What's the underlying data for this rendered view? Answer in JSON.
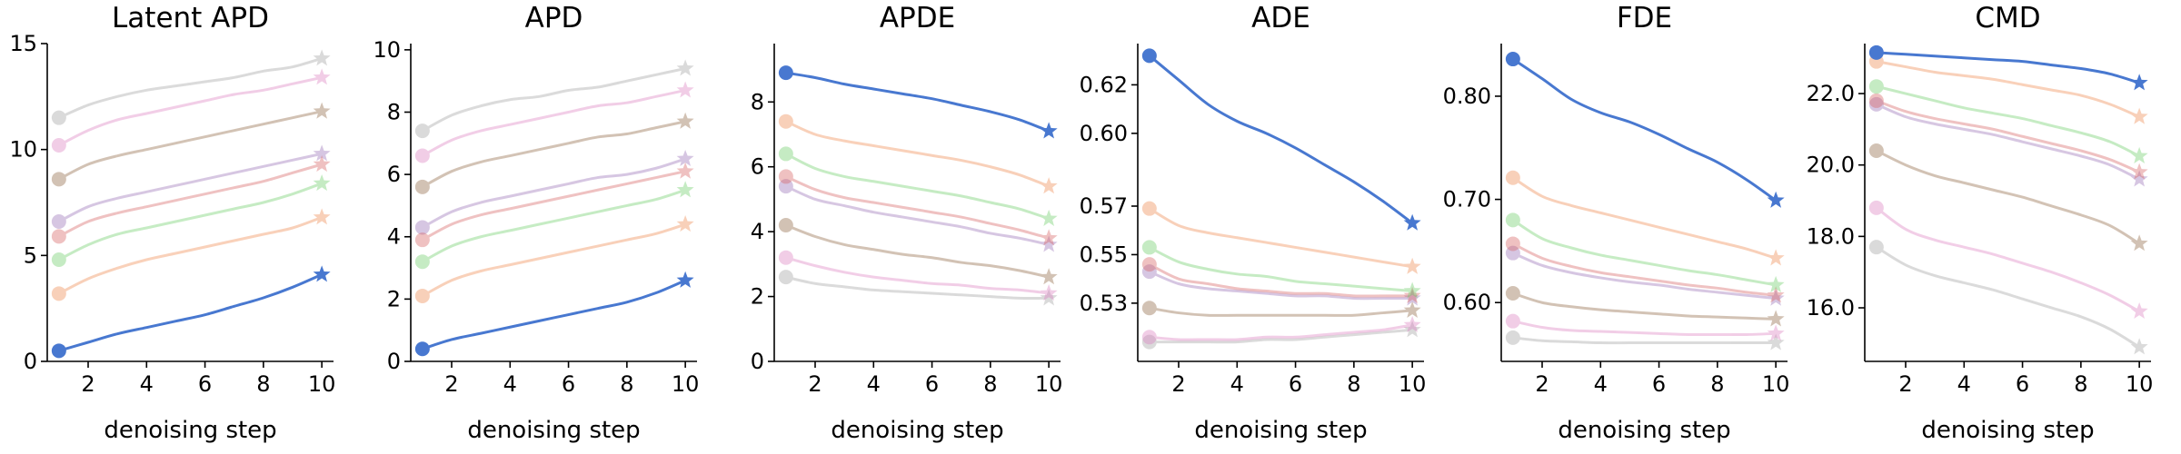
{
  "chart_data": [
    {
      "type": "line",
      "title": "Latent APD",
      "xlabel": "denoising step",
      "xlim": [
        0.6,
        10.4
      ],
      "ylim": [
        0,
        15
      ],
      "xticks": [
        2,
        4,
        6,
        8,
        10
      ],
      "xtick_labels": [
        "2",
        "4",
        "6",
        "8",
        "10"
      ],
      "yticks": [
        0,
        5,
        10,
        15
      ],
      "ytick_labels": [
        "0",
        "5",
        "10",
        "15"
      ],
      "grid": false,
      "x": [
        1,
        2,
        3,
        4,
        5,
        6,
        7,
        8,
        9,
        10
      ],
      "series": [
        {
          "color": "#4878d0",
          "values": [
            0.5,
            0.9,
            1.3,
            1.6,
            1.9,
            2.2,
            2.6,
            3.0,
            3.5,
            4.1
          ]
        },
        {
          "color": "#ee854a",
          "values": [
            3.2,
            3.9,
            4.4,
            4.8,
            5.1,
            5.4,
            5.7,
            6.0,
            6.3,
            6.8
          ]
        },
        {
          "color": "#6acc64",
          "values": [
            4.8,
            5.5,
            6.0,
            6.3,
            6.6,
            6.9,
            7.2,
            7.5,
            7.9,
            8.4
          ]
        },
        {
          "color": "#d65f5f",
          "values": [
            5.9,
            6.6,
            7.0,
            7.3,
            7.6,
            7.9,
            8.2,
            8.5,
            8.9,
            9.3
          ]
        },
        {
          "color": "#956cb4",
          "values": [
            6.6,
            7.3,
            7.7,
            8.0,
            8.3,
            8.6,
            8.9,
            9.2,
            9.5,
            9.8
          ]
        },
        {
          "color": "#8c613c",
          "values": [
            8.6,
            9.3,
            9.7,
            10.0,
            10.3,
            10.6,
            10.9,
            11.2,
            11.5,
            11.8
          ]
        },
        {
          "color": "#dc7ec0",
          "values": [
            10.2,
            10.9,
            11.4,
            11.7,
            12.0,
            12.3,
            12.6,
            12.8,
            13.1,
            13.4
          ]
        },
        {
          "color": "#a0a0a0",
          "values": [
            11.5,
            12.1,
            12.5,
            12.8,
            13.0,
            13.2,
            13.4,
            13.7,
            13.9,
            14.3
          ]
        }
      ]
    },
    {
      "type": "line",
      "title": "APD",
      "xlabel": "denoising step",
      "xlim": [
        0.6,
        10.4
      ],
      "ylim": [
        0,
        10.2
      ],
      "xticks": [
        2,
        4,
        6,
        8,
        10
      ],
      "xtick_labels": [
        "2",
        "4",
        "6",
        "8",
        "10"
      ],
      "yticks": [
        0,
        2,
        4,
        6,
        8,
        10
      ],
      "ytick_labels": [
        "0",
        "2",
        "4",
        "6",
        "8",
        "10"
      ],
      "grid": false,
      "x": [
        1,
        2,
        3,
        4,
        5,
        6,
        7,
        8,
        9,
        10
      ],
      "series": [
        {
          "color": "#4878d0",
          "values": [
            0.4,
            0.7,
            0.9,
            1.1,
            1.3,
            1.5,
            1.7,
            1.9,
            2.2,
            2.6
          ]
        },
        {
          "color": "#ee854a",
          "values": [
            2.1,
            2.6,
            2.9,
            3.1,
            3.3,
            3.5,
            3.7,
            3.9,
            4.1,
            4.4
          ]
        },
        {
          "color": "#6acc64",
          "values": [
            3.2,
            3.7,
            4.0,
            4.2,
            4.4,
            4.6,
            4.8,
            5.0,
            5.2,
            5.5
          ]
        },
        {
          "color": "#d65f5f",
          "values": [
            3.9,
            4.4,
            4.7,
            4.9,
            5.1,
            5.3,
            5.5,
            5.7,
            5.9,
            6.1
          ]
        },
        {
          "color": "#956cb4",
          "values": [
            4.3,
            4.8,
            5.1,
            5.3,
            5.5,
            5.7,
            5.9,
            6.0,
            6.2,
            6.5
          ]
        },
        {
          "color": "#8c613c",
          "values": [
            5.6,
            6.1,
            6.4,
            6.6,
            6.8,
            7.0,
            7.2,
            7.3,
            7.5,
            7.7
          ]
        },
        {
          "color": "#dc7ec0",
          "values": [
            6.6,
            7.1,
            7.4,
            7.6,
            7.8,
            8.0,
            8.2,
            8.3,
            8.5,
            8.7
          ]
        },
        {
          "color": "#a0a0a0",
          "values": [
            7.4,
            7.9,
            8.2,
            8.4,
            8.5,
            8.7,
            8.8,
            9.0,
            9.2,
            9.4
          ]
        }
      ]
    },
    {
      "type": "line",
      "title": "APDE",
      "xlabel": "denoising step",
      "xlim": [
        0.6,
        10.4
      ],
      "ylim": [
        0,
        9.8
      ],
      "xticks": [
        2,
        4,
        6,
        8,
        10
      ],
      "xtick_labels": [
        "2",
        "4",
        "6",
        "8",
        "10"
      ],
      "yticks": [
        0,
        2,
        4,
        6,
        8
      ],
      "ytick_labels": [
        "0",
        "2",
        "4",
        "6",
        "8"
      ],
      "grid": false,
      "x": [
        1,
        2,
        3,
        4,
        5,
        6,
        7,
        8,
        9,
        10
      ],
      "series": [
        {
          "color": "#4878d0",
          "values": [
            8.9,
            8.75,
            8.55,
            8.4,
            8.25,
            8.1,
            7.9,
            7.7,
            7.45,
            7.1
          ]
        },
        {
          "color": "#ee854a",
          "values": [
            7.4,
            7.0,
            6.8,
            6.65,
            6.5,
            6.35,
            6.2,
            6.0,
            5.75,
            5.4
          ]
        },
        {
          "color": "#6acc64",
          "values": [
            6.4,
            5.95,
            5.7,
            5.55,
            5.4,
            5.25,
            5.1,
            4.9,
            4.7,
            4.4
          ]
        },
        {
          "color": "#d65f5f",
          "values": [
            5.7,
            5.3,
            5.05,
            4.9,
            4.75,
            4.6,
            4.45,
            4.25,
            4.05,
            3.8
          ]
        },
        {
          "color": "#956cb4",
          "values": [
            5.4,
            5.0,
            4.8,
            4.6,
            4.45,
            4.3,
            4.15,
            3.95,
            3.8,
            3.6
          ]
        },
        {
          "color": "#8c613c",
          "values": [
            4.2,
            3.85,
            3.6,
            3.45,
            3.3,
            3.2,
            3.05,
            2.95,
            2.8,
            2.6
          ]
        },
        {
          "color": "#dc7ec0",
          "values": [
            3.2,
            2.95,
            2.75,
            2.6,
            2.5,
            2.4,
            2.35,
            2.25,
            2.2,
            2.1
          ]
        },
        {
          "color": "#a0a0a0",
          "values": [
            2.6,
            2.4,
            2.3,
            2.2,
            2.15,
            2.1,
            2.05,
            2.0,
            1.95,
            1.95
          ]
        }
      ]
    },
    {
      "type": "line",
      "title": "ADE",
      "xlabel": "denoising step",
      "xlim": [
        0.6,
        10.4
      ],
      "ylim": [
        0.506,
        0.637
      ],
      "xticks": [
        2,
        4,
        6,
        8,
        10
      ],
      "xtick_labels": [
        "2",
        "4",
        "6",
        "8",
        "10"
      ],
      "yticks": [
        0.53,
        0.55,
        0.57,
        0.6,
        0.62
      ],
      "ytick_labels": [
        "0.53",
        "0.55",
        "0.57",
        "0.60",
        "0.62"
      ],
      "grid": false,
      "x": [
        1,
        2,
        3,
        4,
        5,
        6,
        7,
        8,
        9,
        10
      ],
      "series": [
        {
          "color": "#4878d0",
          "values": [
            0.632,
            0.622,
            0.612,
            0.605,
            0.6,
            0.594,
            0.587,
            0.58,
            0.572,
            0.563
          ]
        },
        {
          "color": "#ee854a",
          "values": [
            0.569,
            0.562,
            0.559,
            0.557,
            0.555,
            0.553,
            0.551,
            0.549,
            0.547,
            0.545
          ]
        },
        {
          "color": "#6acc64",
          "values": [
            0.553,
            0.547,
            0.544,
            0.542,
            0.541,
            0.539,
            0.538,
            0.537,
            0.536,
            0.535
          ]
        },
        {
          "color": "#d65f5f",
          "values": [
            0.546,
            0.54,
            0.538,
            0.536,
            0.535,
            0.534,
            0.534,
            0.533,
            0.533,
            0.533
          ]
        },
        {
          "color": "#956cb4",
          "values": [
            0.543,
            0.538,
            0.536,
            0.535,
            0.534,
            0.533,
            0.533,
            0.532,
            0.532,
            0.532
          ]
        },
        {
          "color": "#8c613c",
          "values": [
            0.528,
            0.526,
            0.525,
            0.525,
            0.525,
            0.525,
            0.525,
            0.525,
            0.526,
            0.527
          ]
        },
        {
          "color": "#dc7ec0",
          "values": [
            0.516,
            0.515,
            0.515,
            0.515,
            0.516,
            0.516,
            0.517,
            0.518,
            0.519,
            0.521
          ]
        },
        {
          "color": "#a0a0a0",
          "values": [
            0.514,
            0.514,
            0.514,
            0.514,
            0.515,
            0.515,
            0.516,
            0.517,
            0.518,
            0.519
          ]
        }
      ]
    },
    {
      "type": "line",
      "title": "FDE",
      "xlabel": "denoising step",
      "xlim": [
        0.6,
        10.4
      ],
      "ylim": [
        0.543,
        0.851
      ],
      "xticks": [
        2,
        4,
        6,
        8,
        10
      ],
      "xtick_labels": [
        "2",
        "4",
        "6",
        "8",
        "10"
      ],
      "yticks": [
        0.6,
        0.7,
        0.8
      ],
      "ytick_labels": [
        "0.60",
        "0.70",
        "0.80"
      ],
      "grid": false,
      "x": [
        1,
        2,
        3,
        4,
        5,
        6,
        7,
        8,
        9,
        10
      ],
      "series": [
        {
          "color": "#4878d0",
          "values": [
            0.836,
            0.817,
            0.797,
            0.784,
            0.775,
            0.763,
            0.749,
            0.736,
            0.719,
            0.699
          ]
        },
        {
          "color": "#ee854a",
          "values": [
            0.721,
            0.703,
            0.694,
            0.687,
            0.68,
            0.673,
            0.666,
            0.659,
            0.652,
            0.643
          ]
        },
        {
          "color": "#6acc64",
          "values": [
            0.68,
            0.662,
            0.653,
            0.646,
            0.641,
            0.636,
            0.631,
            0.627,
            0.622,
            0.617
          ]
        },
        {
          "color": "#d65f5f",
          "values": [
            0.657,
            0.643,
            0.635,
            0.629,
            0.625,
            0.621,
            0.617,
            0.614,
            0.61,
            0.607
          ]
        },
        {
          "color": "#956cb4",
          "values": [
            0.648,
            0.636,
            0.629,
            0.624,
            0.62,
            0.617,
            0.613,
            0.61,
            0.607,
            0.604
          ]
        },
        {
          "color": "#8c613c",
          "values": [
            0.609,
            0.6,
            0.596,
            0.593,
            0.591,
            0.589,
            0.587,
            0.586,
            0.585,
            0.584
          ]
        },
        {
          "color": "#dc7ec0",
          "values": [
            0.582,
            0.576,
            0.573,
            0.572,
            0.571,
            0.57,
            0.569,
            0.569,
            0.569,
            0.57
          ]
        },
        {
          "color": "#a0a0a0",
          "values": [
            0.566,
            0.563,
            0.562,
            0.561,
            0.561,
            0.561,
            0.561,
            0.561,
            0.561,
            0.561
          ]
        }
      ]
    },
    {
      "type": "line",
      "title": "CMD",
      "xlabel": "denoising step",
      "xlim": [
        0.6,
        10.4
      ],
      "ylim": [
        14.5,
        23.4
      ],
      "xticks": [
        2,
        4,
        6,
        8,
        10
      ],
      "xtick_labels": [
        "2",
        "4",
        "6",
        "8",
        "10"
      ],
      "yticks": [
        16,
        18,
        20,
        22
      ],
      "ytick_labels": [
        "16.0",
        "18.0",
        "20.0",
        "22.0"
      ],
      "grid": false,
      "x": [
        1,
        2,
        3,
        4,
        5,
        6,
        7,
        8,
        9,
        10
      ],
      "series": [
        {
          "color": "#4878d0",
          "values": [
            23.15,
            23.1,
            23.05,
            23.0,
            22.95,
            22.9,
            22.8,
            22.7,
            22.55,
            22.3
          ]
        },
        {
          "color": "#ee854a",
          "values": [
            22.9,
            22.75,
            22.6,
            22.5,
            22.4,
            22.25,
            22.1,
            21.95,
            21.7,
            21.35
          ]
        },
        {
          "color": "#6acc64",
          "values": [
            22.2,
            22.0,
            21.8,
            21.6,
            21.45,
            21.3,
            21.1,
            20.9,
            20.65,
            20.25
          ]
        },
        {
          "color": "#d65f5f",
          "values": [
            21.8,
            21.5,
            21.3,
            21.15,
            21.0,
            20.8,
            20.6,
            20.4,
            20.15,
            19.8
          ]
        },
        {
          "color": "#956cb4",
          "values": [
            21.7,
            21.35,
            21.15,
            21.0,
            20.85,
            20.65,
            20.45,
            20.25,
            20.0,
            19.6
          ]
        },
        {
          "color": "#8c613c",
          "values": [
            20.4,
            20.0,
            19.7,
            19.5,
            19.3,
            19.1,
            18.85,
            18.6,
            18.3,
            17.8
          ]
        },
        {
          "color": "#dc7ec0",
          "values": [
            18.8,
            18.2,
            17.9,
            17.7,
            17.5,
            17.25,
            17.0,
            16.7,
            16.35,
            15.9
          ]
        },
        {
          "color": "#a0a0a0",
          "values": [
            17.7,
            17.2,
            16.9,
            16.7,
            16.5,
            16.25,
            16.0,
            15.75,
            15.4,
            14.9
          ]
        }
      ]
    }
  ]
}
